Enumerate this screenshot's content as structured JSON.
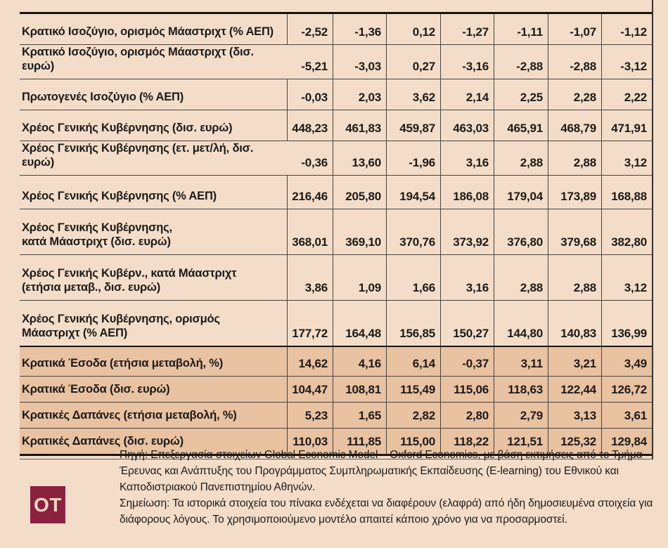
{
  "chart_data": {
    "type": "table",
    "decimal_format": "comma",
    "rows": [
      {
        "label": "Κρατικό Ισοζύγιο, ορισμός Μάαστριχτ (% ΑΕΠ)",
        "values": [
          "-2,52",
          "-1,36",
          "0,12",
          "-1,27",
          "-1,11",
          "-1,07",
          "-1,12"
        ],
        "highlight": false,
        "wide_label": false
      },
      {
        "label": "Κρατικό Ισοζύγιο, ορισμός Μάαστριχτ (δισ. ευρώ)",
        "values": [
          "-5,21",
          "-3,03",
          "0,27",
          "-3,16",
          "-2,88",
          "-2,88",
          "-3,12"
        ],
        "highlight": false,
        "wide_label": true
      },
      {
        "label": "Πρωτογενές Ισοζύγιο (% ΑΕΠ)",
        "values": [
          "-0,03",
          "2,03",
          "3,62",
          "2,14",
          "2,25",
          "2,28",
          "2,22"
        ],
        "highlight": false,
        "wide_label": false
      },
      {
        "label": "Χρέος Γενικής Κυβέρνησης (δισ. ευρώ)",
        "values": [
          "448,23",
          "461,83",
          "459,87",
          "463,03",
          "465,91",
          "468,79",
          "471,91"
        ],
        "highlight": false,
        "wide_label": false
      },
      {
        "label": "Χρέος Γενικής Κυβέρνησης (ετ. μετ/λή, δισ. ευρώ)",
        "values": [
          "-0,36",
          "13,60",
          "-1,96",
          "3,16",
          "2,88",
          "2,88",
          "3,12"
        ],
        "highlight": false,
        "wide_label": true
      },
      {
        "label": "Χρέος Γενικής Κυβέρνησης (% ΑΕΠ)",
        "values": [
          "216,46",
          "205,80",
          "194,54",
          "186,08",
          "179,04",
          "173,89",
          "168,88"
        ],
        "highlight": false,
        "wide_label": false
      },
      {
        "label": "Χρέος Γενικής Κυβέρνησης,\nκατά Μάαστριχτ (δισ. ευρώ)",
        "values": [
          "368,01",
          "369,10",
          "370,76",
          "373,92",
          "376,80",
          "379,68",
          "382,80"
        ],
        "highlight": false,
        "wide_label": false
      },
      {
        "label": "Χρέος Γενικής Κυβέρν., κατά Μάαστριχτ\n(ετήσια μεταβ., δισ. ευρώ)",
        "values": [
          "3,86",
          "1,09",
          "1,66",
          "3,16",
          "2,88",
          "2,88",
          "3,12"
        ],
        "highlight": false,
        "wide_label": false
      },
      {
        "label": "Χρέος Γενικής Κυβέρνησης, ορισμός\nΜάαστριχτ (% ΑΕΠ)",
        "values": [
          "177,72",
          "164,48",
          "156,85",
          "150,27",
          "144,80",
          "140,83",
          "136,99"
        ],
        "highlight": false,
        "wide_label": false
      },
      {
        "label": "Κρατικά Έσοδα (ετήσια μεταβολή, %)",
        "values": [
          "14,62",
          "4,16",
          "6,14",
          "-0,37",
          "3,11",
          "3,21",
          "3,49"
        ],
        "highlight": true,
        "wide_label": false
      },
      {
        "label": "Κρατικά Έσοδα (δισ. ευρώ)",
        "values": [
          "104,47",
          "108,81",
          "115,49",
          "115,06",
          "118,63",
          "122,44",
          "126,72"
        ],
        "highlight": true,
        "wide_label": false
      },
      {
        "label": "Κρατικές Δαπάνες (ετήσια μεταβολή, %)",
        "values": [
          "5,23",
          "1,65",
          "2,82",
          "2,80",
          "2,79",
          "3,13",
          "3,61"
        ],
        "highlight": true,
        "wide_label": false
      },
      {
        "label": "Κρατικές Δαπάνες (δισ. ευρώ)",
        "values": [
          "110,03",
          "111,85",
          "115,00",
          "118,22",
          "121,51",
          "125,32",
          "129,84"
        ],
        "highlight": true,
        "wide_label": false
      }
    ]
  },
  "footer": {
    "logo_text": "OT",
    "source_text": "Πηγή: Επεξεργασία στοιχείων Global Economic Model – Oxford Economics, με βάση εκτιμήσεις από το Τμήμα Έρευνας και Ανάπτυξης του Προγράμματος Συμπληρωματικής Εκπαίδευσης (E-learning) του Εθνικού και Καποδιστριακού Πανεπιστημίου Αθηνών.",
    "note_text": "Σημείωση: Τα ιστορικά στοιχεία του πίνακα ενδέχεται να διαφέρουν (ελαφρά) από ήδη δημοσιευμένα στοιχεία για διάφορους λόγους. Το χρησιμοποιούμενο μοντέλο απαιτεί κάποιο χρόνο για να προσαρμοστεί."
  },
  "colors": {
    "background": "#f3ddc9",
    "highlight_row": "#e9c2a2",
    "rule_dark": "#181511",
    "rule": "#49443d",
    "text": "#1c1a17",
    "logo_background": "#8b2141",
    "logo_text": "#eed8c0"
  }
}
